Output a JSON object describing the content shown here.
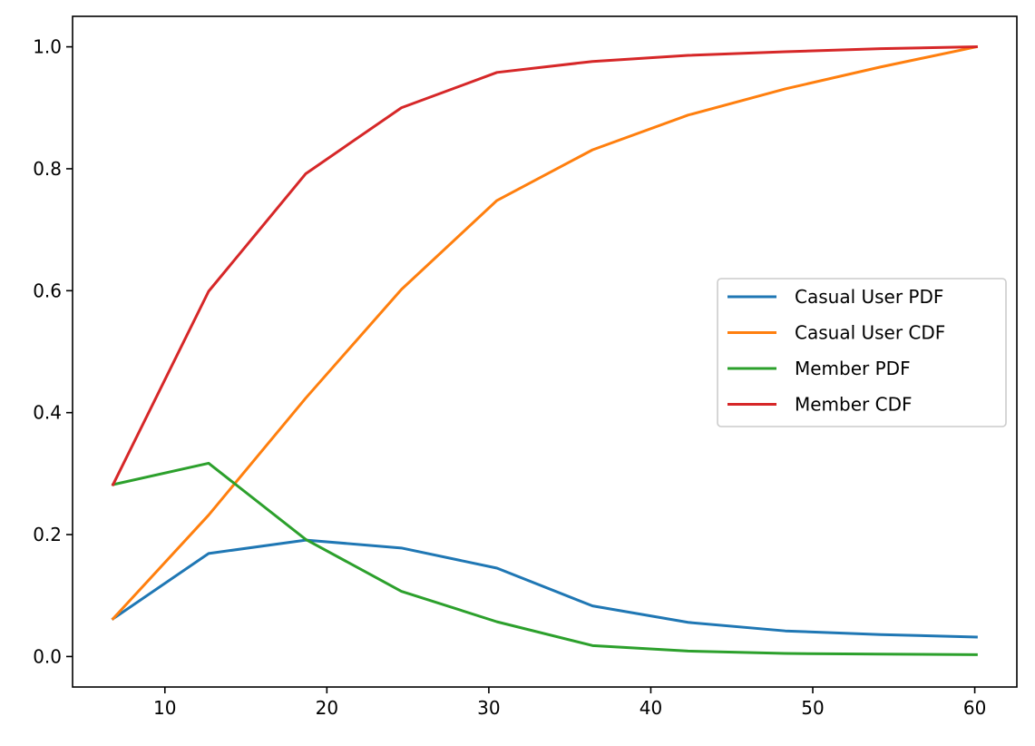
{
  "chart_data": {
    "type": "line",
    "title": "",
    "xlabel": "",
    "ylabel": "",
    "xlim": [
      4.3,
      62.6
    ],
    "ylim": [
      -0.05,
      1.05
    ],
    "xticks": [
      10,
      20,
      30,
      40,
      50,
      60
    ],
    "xtick_labels": [
      "10",
      "20",
      "30",
      "40",
      "50",
      "60"
    ],
    "yticks": [
      0.0,
      0.2,
      0.4,
      0.6,
      0.8,
      1.0
    ],
    "ytick_labels": [
      "0.0",
      "0.2",
      "0.4",
      "0.6",
      "0.8",
      "1.0"
    ],
    "grid": false,
    "legend_position": "center-right",
    "x": [
      6.8,
      12.7,
      18.7,
      24.6,
      30.5,
      36.4,
      42.3,
      48.3,
      54.2,
      60.1
    ],
    "series": [
      {
        "name": "Casual User PDF",
        "color": "#1f77b4",
        "values": [
          0.062,
          0.169,
          0.191,
          0.178,
          0.145,
          0.083,
          0.056,
          0.042,
          0.036,
          0.032
        ]
      },
      {
        "name": "Casual User CDF",
        "color": "#ff7f0e",
        "values": [
          0.062,
          0.232,
          0.424,
          0.602,
          0.748,
          0.831,
          0.888,
          0.931,
          0.967,
          1.0
        ]
      },
      {
        "name": "Member PDF",
        "color": "#2ca02c",
        "values": [
          0.282,
          0.317,
          0.192,
          0.107,
          0.057,
          0.018,
          0.009,
          0.005,
          0.004,
          0.003
        ]
      },
      {
        "name": "Member CDF",
        "color": "#d62728",
        "values": [
          0.282,
          0.599,
          0.792,
          0.9,
          0.958,
          0.976,
          0.986,
          0.992,
          0.997,
          1.0
        ]
      }
    ]
  }
}
